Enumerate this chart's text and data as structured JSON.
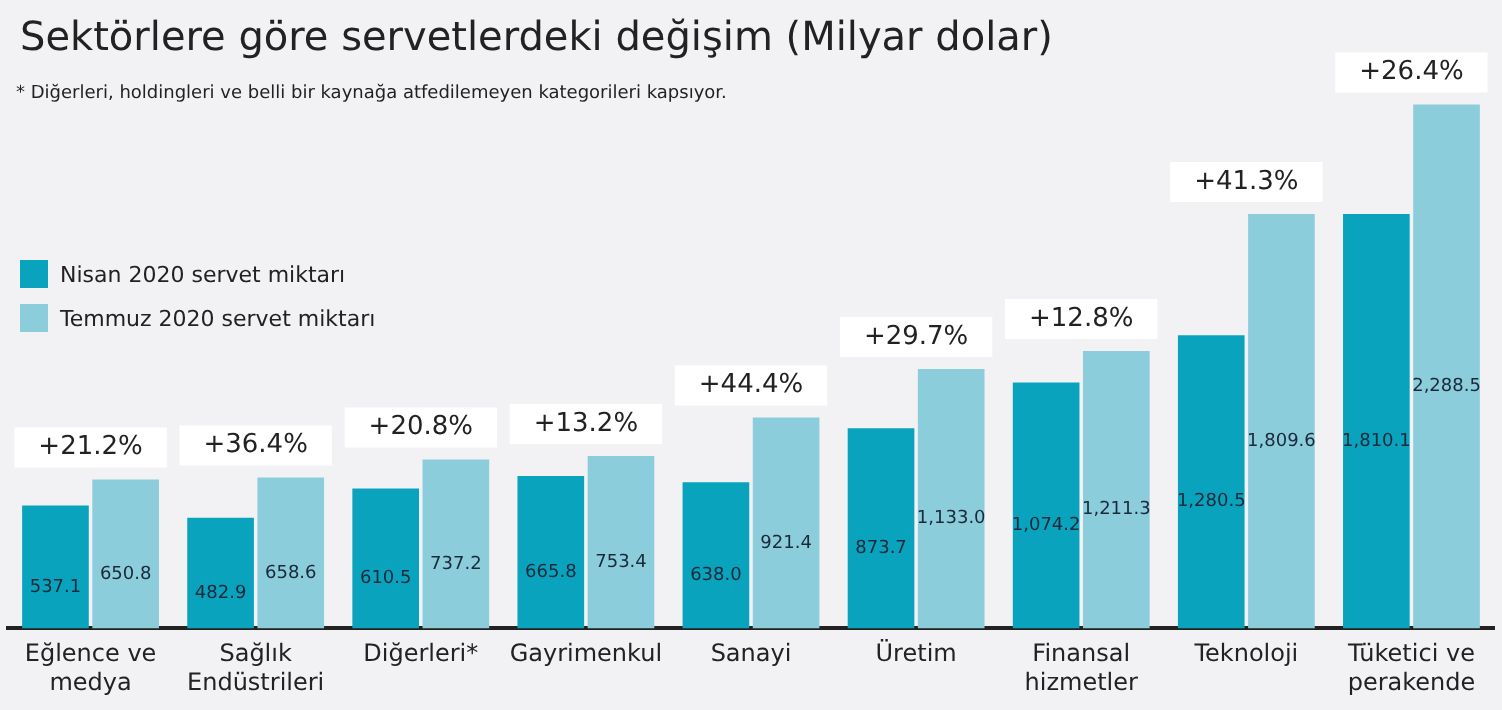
{
  "chart_data": {
    "type": "bar",
    "title": "Sektörlere göre servetlerdeki değişim (Milyar dolar)",
    "subtitle": "* Diğerleri, holdingleri ve belli bir kaynağa atfedilemeyen kategorileri kapsıyor.",
    "categories": [
      "Eğlence ve medya",
      "Sağlık Endüstrileri",
      "Diğerleri*",
      "Gayrimenkul",
      "Sanayi",
      "Üretim",
      "Finansal hizmetler",
      "Teknoloji",
      "Tüketici ve perakende"
    ],
    "series": [
      {
        "name": "Nisan 2020 servet miktarı",
        "color": "#0aa3bd",
        "values": [
          537.1,
          482.9,
          610.5,
          665.8,
          638.0,
          873.7,
          1074.2,
          1280.5,
          1810.1
        ],
        "value_labels": [
          "537.1",
          "482.9",
          "610.5",
          "665.8",
          "638.0",
          "873.7",
          "1,074.2",
          "1,280.5",
          "1,810.1"
        ]
      },
      {
        "name": "Temmuz 2020 servet miktarı",
        "color": "#8ccddc",
        "values": [
          650.8,
          658.6,
          737.2,
          753.4,
          921.4,
          1133.0,
          1211.3,
          1809.6,
          2288.5
        ],
        "value_labels": [
          "650.8",
          "658.6",
          "737.2",
          "753.4",
          "921.4",
          "1,133.0",
          "1,211.3",
          "1,809.6",
          "2,288.5"
        ]
      }
    ],
    "annotations": [
      {
        "text": "+21.2%",
        "x": "Eğlence ve medya",
        "y": 650.8
      },
      {
        "text": "+36.4%",
        "x": "Sağlık Endüstrileri",
        "y": 658.6
      },
      {
        "text": "+20.8%",
        "x": "Diğerleri*",
        "y": 737.2
      },
      {
        "text": "+13.2%",
        "x": "Gayrimenkul",
        "y": 753.4
      },
      {
        "text": "+44.4%",
        "x": "Sanayi",
        "y": 921.4
      },
      {
        "text": "+29.7%",
        "x": "Üretim",
        "y": 1133.0
      },
      {
        "text": "+12.8%",
        "x": "Finansal hizmetler",
        "y": 1211.3
      },
      {
        "text": "+41.3%",
        "x": "Teknoloji",
        "y": 1809.6
      },
      {
        "text": "+26.4%",
        "x": "Tüketici ve perakende",
        "y": 2288.5
      }
    ],
    "legend": "left",
    "grid": false,
    "tick_labels": "x"
  }
}
